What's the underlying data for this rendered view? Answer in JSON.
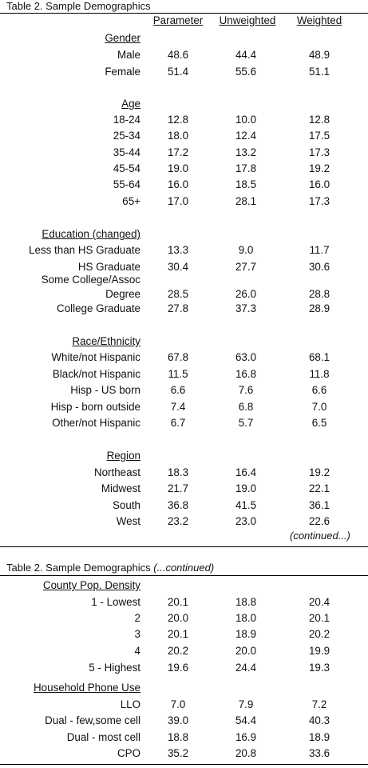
{
  "part1": {
    "caption": "Table 2. Sample Demographics",
    "columns": [
      "Parameter",
      "Unweighted",
      "Weighted"
    ],
    "gender": {
      "title": "Gender",
      "rows": [
        {
          "label": "Male",
          "values": [
            "48.6",
            "44.4",
            "48.9"
          ]
        },
        {
          "label": "Female",
          "values": [
            "51.4",
            "55.6",
            "51.1"
          ]
        }
      ]
    },
    "age": {
      "title": "Age",
      "rows": [
        {
          "label": "18-24",
          "values": [
            "12.8",
            "10.0",
            "12.8"
          ]
        },
        {
          "label": "25-34",
          "values": [
            "18.0",
            "12.4",
            "17.5"
          ]
        },
        {
          "label": "35-44",
          "values": [
            "17.2",
            "13.2",
            "17.3"
          ]
        },
        {
          "label": "45-54",
          "values": [
            "19.0",
            "17.8",
            "19.2"
          ]
        },
        {
          "label": "55-64",
          "values": [
            "16.0",
            "18.5",
            "16.0"
          ]
        },
        {
          "label": "65+",
          "values": [
            "17.0",
            "28.1",
            "17.3"
          ]
        }
      ]
    },
    "education": {
      "title": "Education (changed)",
      "rows": [
        {
          "label": "Less than HS Graduate",
          "values": [
            "13.3",
            "9.0",
            "11.7"
          ]
        },
        {
          "label": "HS Graduate",
          "values": [
            "30.4",
            "27.7",
            "30.6"
          ]
        },
        {
          "label_line1": "Some College/Assoc",
          "label_line2": "Degree",
          "values": [
            "28.5",
            "26.0",
            "28.8"
          ]
        },
        {
          "label": "College Graduate",
          "values": [
            "27.8",
            "37.3",
            "28.9"
          ]
        }
      ]
    },
    "race": {
      "title": "Race/Ethnicity",
      "rows": [
        {
          "label": "White/not Hispanic",
          "values": [
            "67.8",
            "63.0",
            "68.1"
          ]
        },
        {
          "label": "Black/not Hispanic",
          "values": [
            "11.5",
            "16.8",
            "11.8"
          ]
        },
        {
          "label": "Hisp - US born",
          "values": [
            "6.6",
            "7.6",
            "6.6"
          ]
        },
        {
          "label": "Hisp - born outside",
          "values": [
            "7.4",
            "6.8",
            "7.0"
          ]
        },
        {
          "label": "Other/not Hispanic",
          "values": [
            "6.7",
            "5.7",
            "6.5"
          ]
        }
      ]
    },
    "region": {
      "title": "Region",
      "rows": [
        {
          "label": "Northeast",
          "values": [
            "18.3",
            "16.4",
            "19.2"
          ]
        },
        {
          "label": "Midwest",
          "values": [
            "21.7",
            "19.0",
            "22.1"
          ]
        },
        {
          "label": "South",
          "values": [
            "36.8",
            "41.5",
            "36.1"
          ]
        },
        {
          "label": "West",
          "values": [
            "23.2",
            "23.0",
            "22.6"
          ]
        }
      ]
    },
    "continued_note": "(continued...)"
  },
  "part2": {
    "caption": "Table 2. Sample Demographics",
    "caption_suffix": "(...continued)",
    "county": {
      "title": "County Pop. Density",
      "rows": [
        {
          "label": "1 - Lowest",
          "values": [
            "20.1",
            "18.8",
            "20.4"
          ]
        },
        {
          "label": "2",
          "values": [
            "20.0",
            "18.0",
            "20.1"
          ]
        },
        {
          "label": "3",
          "values": [
            "20.1",
            "18.9",
            "20.2"
          ]
        },
        {
          "label": "4",
          "values": [
            "20.2",
            "20.0",
            "19.9"
          ]
        },
        {
          "label": "5 - Highest",
          "values": [
            "19.6",
            "24.4",
            "19.3"
          ]
        }
      ]
    },
    "phone": {
      "title": "Household Phone Use",
      "rows": [
        {
          "label": "LLO",
          "values": [
            "7.0",
            "7.9",
            "7.2"
          ]
        },
        {
          "label": "Dual - few,some cell",
          "values": [
            "39.0",
            "54.4",
            "40.3"
          ]
        },
        {
          "label": "Dual - most cell",
          "values": [
            "18.8",
            "16.9",
            "18.9"
          ]
        },
        {
          "label": "CPO",
          "values": [
            "35.2",
            "20.8",
            "33.6"
          ]
        }
      ]
    }
  }
}
